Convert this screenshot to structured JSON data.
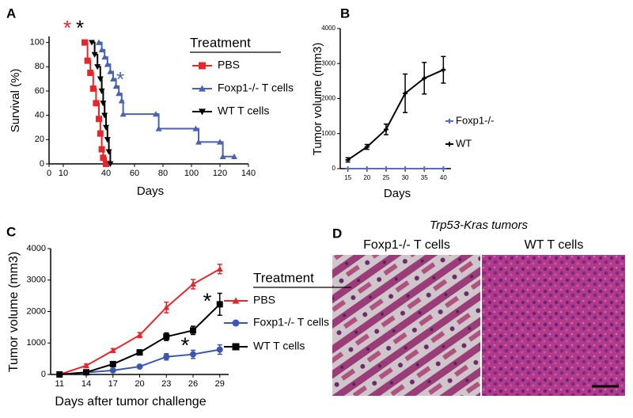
{
  "chart_data": [
    {
      "type": "step",
      "panel": "A",
      "x_label": "Days",
      "y_label": "Survival (%)",
      "xlim": [
        0,
        140
      ],
      "xticks": [
        0,
        10,
        40,
        60,
        80,
        100,
        120,
        140
      ],
      "ylim": [
        0,
        105
      ],
      "yticks": [
        0,
        20,
        40,
        60,
        80,
        100
      ],
      "legend_title": "Treatment",
      "legend": "right",
      "series": [
        {
          "name": "PBS",
          "color": "#e8262a",
          "marker": "square",
          "x": [
            25,
            27,
            29,
            31,
            33,
            35,
            36,
            37,
            38,
            40
          ],
          "values": [
            100,
            85,
            75,
            62,
            50,
            37,
            25,
            12,
            5,
            0
          ]
        },
        {
          "name": "Foxp1-/- T cells",
          "color": "#4a62b0",
          "marker": "triangle",
          "x": [
            35,
            37,
            39,
            41,
            43,
            45,
            47,
            49,
            51,
            52,
            75,
            77,
            103,
            105,
            120,
            122,
            130
          ],
          "values": [
            100,
            94,
            88,
            82,
            76,
            70,
            64,
            58,
            52,
            41,
            41,
            29,
            29,
            18,
            18,
            6,
            6
          ]
        },
        {
          "name": "WT T cells",
          "color": "#000000",
          "marker": "down-triangle",
          "x": [
            30,
            32,
            34,
            36,
            37,
            38,
            39,
            40,
            41,
            42,
            43
          ],
          "values": [
            100,
            90,
            80,
            70,
            60,
            50,
            40,
            30,
            20,
            10,
            0
          ]
        }
      ],
      "annotations": [
        {
          "text": "*",
          "color": "#e8262a"
        },
        {
          "text": "*",
          "color": "#000000"
        },
        {
          "text": "*",
          "color": "#4a62b0"
        }
      ]
    },
    {
      "type": "line",
      "panel": "B",
      "x_label": "Days",
      "y_label": "Tumor volume (mm3)",
      "x": [
        15,
        20,
        25,
        30,
        35,
        40
      ],
      "xlim": [
        13,
        42
      ],
      "xticks": [
        15,
        20,
        25,
        30,
        35,
        40
      ],
      "ylim": [
        0,
        4000
      ],
      "yticks": [
        0,
        1000,
        2000,
        3000,
        4000
      ],
      "legend": "right",
      "series": [
        {
          "name": "Foxp1-/-",
          "color": "#5b6bb5",
          "marker": "plus",
          "values": [
            0,
            0,
            0,
            0,
            0,
            0
          ],
          "errors": [
            0,
            0,
            0,
            0,
            0,
            0
          ]
        },
        {
          "name": "WT",
          "color": "#000000",
          "marker": "plus",
          "values": [
            250,
            620,
            1120,
            2150,
            2580,
            2820
          ],
          "errors": [
            60,
            70,
            150,
            550,
            450,
            380
          ]
        }
      ]
    },
    {
      "type": "line",
      "panel": "C",
      "x_label": "Days after tumor challenge",
      "y_label": "Tumor volume (mm3)",
      "x": [
        11,
        14,
        17,
        20,
        23,
        26,
        29
      ],
      "xlim": [
        10,
        30
      ],
      "xticks": [
        11,
        14,
        17,
        20,
        23,
        26,
        29
      ],
      "ylim": [
        0,
        4000
      ],
      "yticks": [
        0,
        1000,
        2000,
        3000,
        4000
      ],
      "legend_title": "Treatment",
      "legend": "right",
      "series": [
        {
          "name": "PBS",
          "color": "#e8262a",
          "marker": "triangle",
          "values": [
            0,
            280,
            760,
            1250,
            2130,
            2870,
            3350
          ],
          "errors": [
            30,
            50,
            60,
            80,
            170,
            150,
            150
          ]
        },
        {
          "name": "Foxp1-/- T cells",
          "color": "#3b56b0",
          "marker": "circle",
          "values": [
            0,
            60,
            130,
            250,
            560,
            640,
            790
          ],
          "errors": [
            20,
            30,
            30,
            40,
            100,
            130,
            150
          ]
        },
        {
          "name": "WT T cells",
          "color": "#000000",
          "marker": "square",
          "values": [
            0,
            70,
            330,
            700,
            1200,
            1400,
            2230
          ],
          "errors": [
            20,
            40,
            50,
            80,
            120,
            130,
            350
          ]
        }
      ],
      "annotations": [
        {
          "text": "*",
          "color": "#000000"
        },
        {
          "text": "*",
          "color": "#000000"
        }
      ]
    }
  ],
  "image_panel": {
    "panel": "D",
    "title": "Trp53-Kras tumors",
    "labels": [
      "Foxp1-/- T cells",
      "WT T cells"
    ]
  }
}
